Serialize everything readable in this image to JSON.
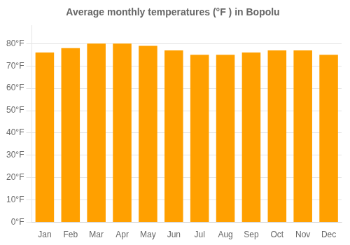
{
  "chart_data": {
    "type": "bar",
    "title": "Average monthly temperatures (°F ) in Bopolu",
    "categories": [
      "Jan",
      "Feb",
      "Mar",
      "Apr",
      "May",
      "Jun",
      "Jul",
      "Aug",
      "Sep",
      "Oct",
      "Nov",
      "Dec"
    ],
    "values": [
      76,
      78,
      80,
      80,
      79,
      77,
      75,
      75,
      76,
      77,
      77,
      75
    ],
    "color": "#FFA000",
    "ylim": [
      0,
      88
    ],
    "yticks": [
      {
        "value": 0,
        "label": "0°F"
      },
      {
        "value": 10,
        "label": "10°F"
      },
      {
        "value": 20,
        "label": "20°F"
      },
      {
        "value": 30,
        "label": "30°F"
      },
      {
        "value": 40,
        "label": "40°F"
      },
      {
        "value": 50,
        "label": "50°F"
      },
      {
        "value": 60,
        "label": "60°F"
      },
      {
        "value": 70,
        "label": "70°F"
      },
      {
        "value": 80,
        "label": "80°F"
      }
    ],
    "grid": true
  }
}
